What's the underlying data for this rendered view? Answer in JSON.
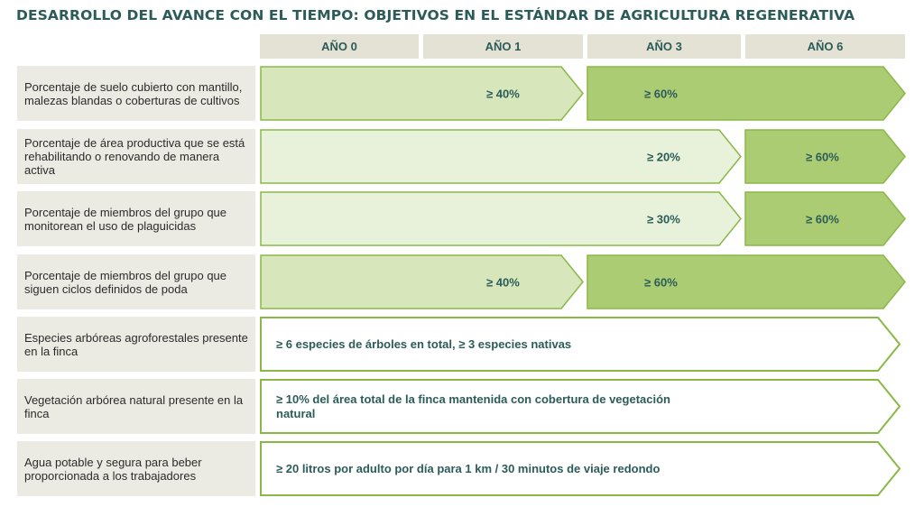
{
  "title": "DESARROLLO DEL AVANCE CON EL TIEMPO: OBJETIVOS EN EL ESTÁNDAR DE AGRICULTURA REGENERATIVA",
  "years": [
    "AÑO 0",
    "AÑO 1",
    "AÑO 3",
    "AÑO 6"
  ],
  "colors": {
    "title": "#2b5c59",
    "header_bg": "#e4e2d4",
    "label_bg": "#ecebe3",
    "tier1": "#d7e6bb",
    "tier2": "#abcc73",
    "tier3": "#e8f1da",
    "border": "#8ab846",
    "white": "#ffffff"
  },
  "rows": [
    {
      "label": "Porcentaje de suelo cubierto con mantillo, malezas blandas o coberturas de cultivos",
      "segments": [
        {
          "text": "≥ 40%",
          "from_year": "AÑO 0",
          "to_year": "AÑO 1",
          "style": "tier1"
        },
        {
          "text": "≥ 60%",
          "from_year": "AÑO 3",
          "to_year": "AÑO 6",
          "style": "tier2"
        }
      ]
    },
    {
      "label": "Porcentaje de área productiva que se está rehabilitando o renovando de manera activa",
      "segments": [
        {
          "text": "≥ 20%",
          "from_year": "AÑO 0",
          "to_year": "AÑO 3",
          "style": "tier3"
        },
        {
          "text": "≥ 60%",
          "from_year": "AÑO 6",
          "to_year": "AÑO 6",
          "style": "tier2"
        }
      ]
    },
    {
      "label": "Porcentaje de miembros del grupo que monitorean el uso de plaguicidas",
      "segments": [
        {
          "text": "≥ 30%",
          "from_year": "AÑO 0",
          "to_year": "AÑO 3",
          "style": "tier3"
        },
        {
          "text": "≥ 60%",
          "from_year": "AÑO 6",
          "to_year": "AÑO 6",
          "style": "tier2"
        }
      ]
    },
    {
      "label": "Porcentaje de miembros del grupo que siguen ciclos definidos de poda",
      "segments": [
        {
          "text": "≥ 40%",
          "from_year": "AÑO 0",
          "to_year": "AÑO 1",
          "style": "tier1"
        },
        {
          "text": "≥ 60%",
          "from_year": "AÑO 3",
          "to_year": "AÑO 6",
          "style": "tier2"
        }
      ]
    },
    {
      "label": "Especies arbóreas agroforestales presente en la finca",
      "segments": [
        {
          "text": "≥ 6 especies de árboles en total, ≥ 3 especies nativas",
          "from_year": "AÑO 0",
          "to_year": "AÑO 6",
          "style": "white"
        }
      ]
    },
    {
      "label": "Vegetación arbórea natural presente en la finca",
      "segments": [
        {
          "text": "≥ 10% del área total de la finca mantenida con cobertura de vegetación natural",
          "from_year": "AÑO 0",
          "to_year": "AÑO 6",
          "style": "white"
        }
      ]
    },
    {
      "label": "Agua potable y segura para beber proporcionada a los trabajadores",
      "segments": [
        {
          "text": "≥ 20 litros por adulto por día para 1 km / 30 minutos de viaje redondo",
          "from_year": "AÑO 0",
          "to_year": "AÑO 6",
          "style": "white"
        }
      ]
    }
  ]
}
